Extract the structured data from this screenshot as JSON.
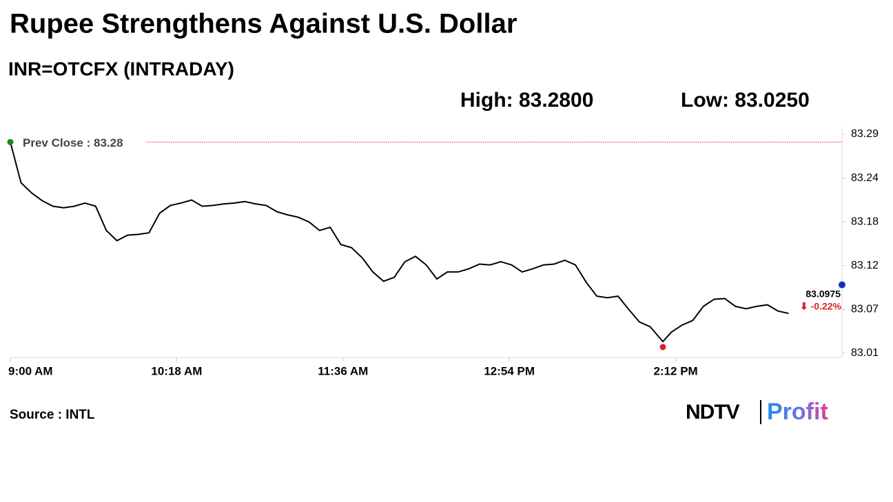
{
  "chart_data": {
    "type": "line",
    "title": "Rupee Strengthens Against U.S. Dollar",
    "subtitle": "INR=OTCFX (INTRADAY)",
    "high_text": "High: 83.2800",
    "low_text": "Low: 83.0250",
    "prev_close": 83.28,
    "prev_close_text": "Prev Close : 83.28",
    "last_value": 83.0975,
    "change_text": "⬇ -0.22%",
    "source": "Source : INTL",
    "logo": [
      "NDTV",
      "Profit"
    ],
    "x": [
      "9:00 AM",
      "9:05 AM",
      "9:10 AM",
      "9:15 AM",
      "9:20 AM",
      "9:25 AM",
      "9:30 AM",
      "9:35 AM",
      "9:40 AM",
      "9:45 AM",
      "9:50 AM",
      "9:55 AM",
      "10:00 AM",
      "10:05 AM",
      "10:10 AM",
      "10:15 AM",
      "10:20 AM",
      "10:25 AM",
      "10:30 AM",
      "10:35 AM",
      "10:40 AM",
      "10:45 AM",
      "10:50 AM",
      "10:55 AM",
      "11:00 AM",
      "11:05 AM",
      "11:10 AM",
      "11:15 AM",
      "11:20 AM",
      "11:25 AM",
      "11:30 AM",
      "11:35 AM",
      "11:40 AM",
      "11:45 AM",
      "11:50 AM",
      "11:55 AM",
      "12:00 PM",
      "12:05 PM",
      "12:10 PM",
      "12:15 PM",
      "12:20 PM",
      "12:25 PM",
      "12:30 PM",
      "12:35 PM",
      "12:40 PM",
      "12:45 PM",
      "12:50 PM",
      "12:55 PM",
      "1:00 PM",
      "1:05 PM",
      "1:10 PM",
      "1:15 PM",
      "1:20 PM",
      "1:25 PM",
      "1:30 PM",
      "1:35 PM",
      "1:40 PM",
      "1:45 PM",
      "1:50 PM",
      "1:55 PM",
      "2:00 PM",
      "2:06 PM",
      "2:10 PM",
      "2:15 PM",
      "2:20 PM",
      "2:25 PM",
      "2:30 PM",
      "2:35 PM",
      "2:40 PM",
      "2:45 PM",
      "2:50 PM",
      "2:55 PM",
      "3:00 PM",
      "3:05 PM"
    ],
    "series": [
      {
        "name": "INR=OTCFX",
        "color": "#000000",
        "values": [
          83.28,
          83.228,
          83.215,
          83.205,
          83.198,
          83.196,
          83.198,
          83.202,
          83.198,
          83.167,
          83.154,
          83.161,
          83.162,
          83.164,
          83.189,
          83.199,
          83.202,
          83.206,
          83.198,
          83.199,
          83.201,
          83.202,
          83.204,
          83.201,
          83.199,
          83.191,
          83.187,
          83.184,
          83.178,
          83.167,
          83.171,
          83.149,
          83.145,
          83.132,
          83.114,
          83.102,
          83.107,
          83.127,
          83.134,
          83.123,
          83.105,
          83.114,
          83.114,
          83.118,
          83.124,
          83.123,
          83.127,
          83.123,
          83.114,
          83.118,
          83.123,
          83.124,
          83.129,
          83.123,
          83.101,
          83.083,
          83.081,
          83.083,
          83.066,
          83.05,
          83.044,
          83.025,
          83.037,
          83.046,
          83.052,
          83.07,
          83.079,
          83.08,
          83.07,
          83.067,
          83.07,
          83.072,
          83.064,
          83.061
        ]
      }
    ],
    "xlim": [
      "9:00 AM",
      "3:30 PM"
    ],
    "xticks": [
      "9:00 AM",
      "10:18 AM",
      "11:36 AM",
      "12:54 PM",
      "2:12 PM"
    ],
    "ylim": [
      83.01,
      83.29
    ],
    "yticks": [
      {
        "value": 83.01,
        "label": "83.01"
      },
      {
        "value": 83.066,
        "label": "83.07"
      },
      {
        "value": 83.122,
        "label": "83.12"
      },
      {
        "value": 83.178,
        "label": "83.18"
      },
      {
        "value": 83.234,
        "label": "83.24"
      },
      {
        "value": 83.29,
        "label": "83.29"
      }
    ]
  }
}
